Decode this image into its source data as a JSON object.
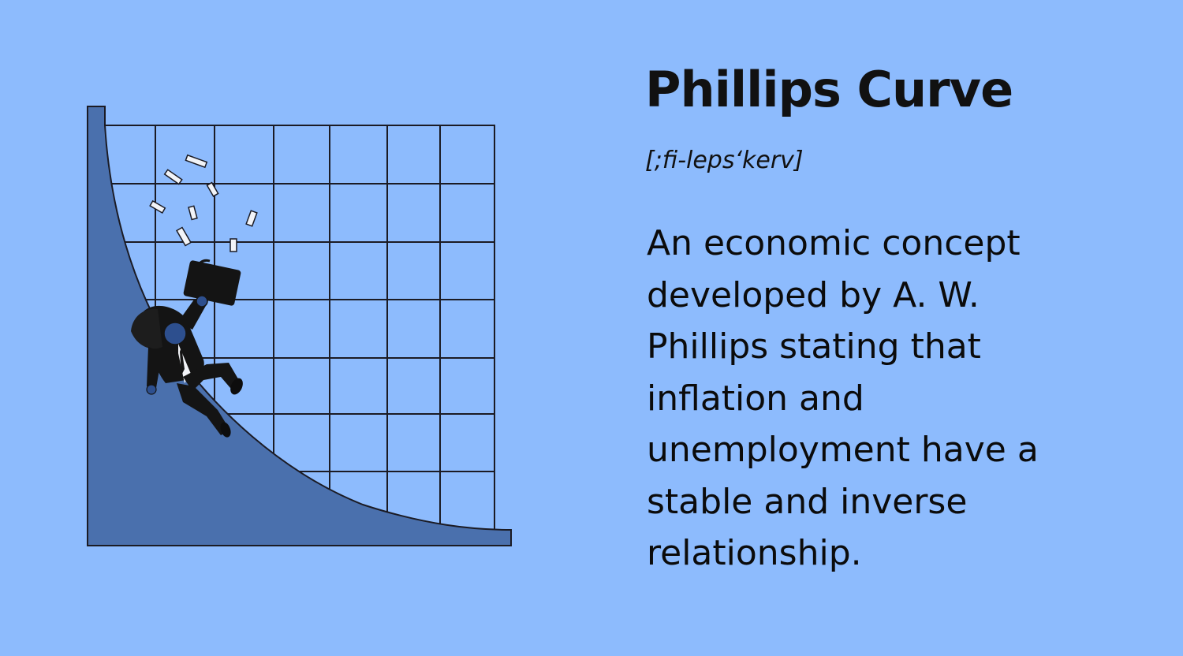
{
  "title": "Phillips Curve",
  "pronunciation": "[;fi-leps‘kerv]",
  "definition": "An economic concept developed by A. W. Phillips stating that inflation and unemployment have a stable and inverse relationship.",
  "colors": {
    "background": "#8dbbfd",
    "curve_fill": "#4a70ad",
    "grid_line": "#1b1b24",
    "text": "#111111"
  },
  "illustration": {
    "icon": "falling-businessman-on-curve-illustration"
  }
}
